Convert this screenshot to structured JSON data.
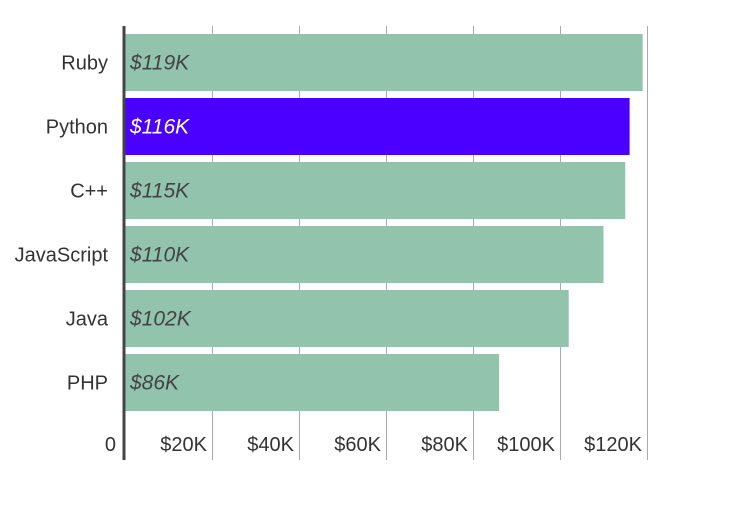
{
  "chart_data": {
    "type": "bar",
    "orientation": "horizontal",
    "categories": [
      "Ruby",
      "Python",
      "C++",
      "JavaScript",
      "Java",
      "PHP"
    ],
    "values": [
      119,
      116,
      115,
      110,
      102,
      86
    ],
    "value_labels": [
      "$119K",
      "$116K",
      "$115K",
      "$110K",
      "$102K",
      "$86K"
    ],
    "x_ticks": [
      {
        "value": 0,
        "label": "0"
      },
      {
        "value": 20,
        "label": "$20K"
      },
      {
        "value": 40,
        "label": "$40K"
      },
      {
        "value": 60,
        "label": "$60K"
      },
      {
        "value": 80,
        "label": "$80K"
      },
      {
        "value": 100,
        "label": "$100K"
      },
      {
        "value": 120,
        "label": "$120K"
      }
    ],
    "xlim": [
      0,
      120
    ],
    "grid": true,
    "title": "",
    "xlabel": "",
    "ylabel": "",
    "highlight_category": "Python",
    "colors": {
      "bar": "#92c4ad",
      "highlight": "#4b00ff",
      "grid": "#aaaaaa",
      "axis": "#444444",
      "label_text": "#444444",
      "highlight_text": "#ffffff"
    }
  }
}
